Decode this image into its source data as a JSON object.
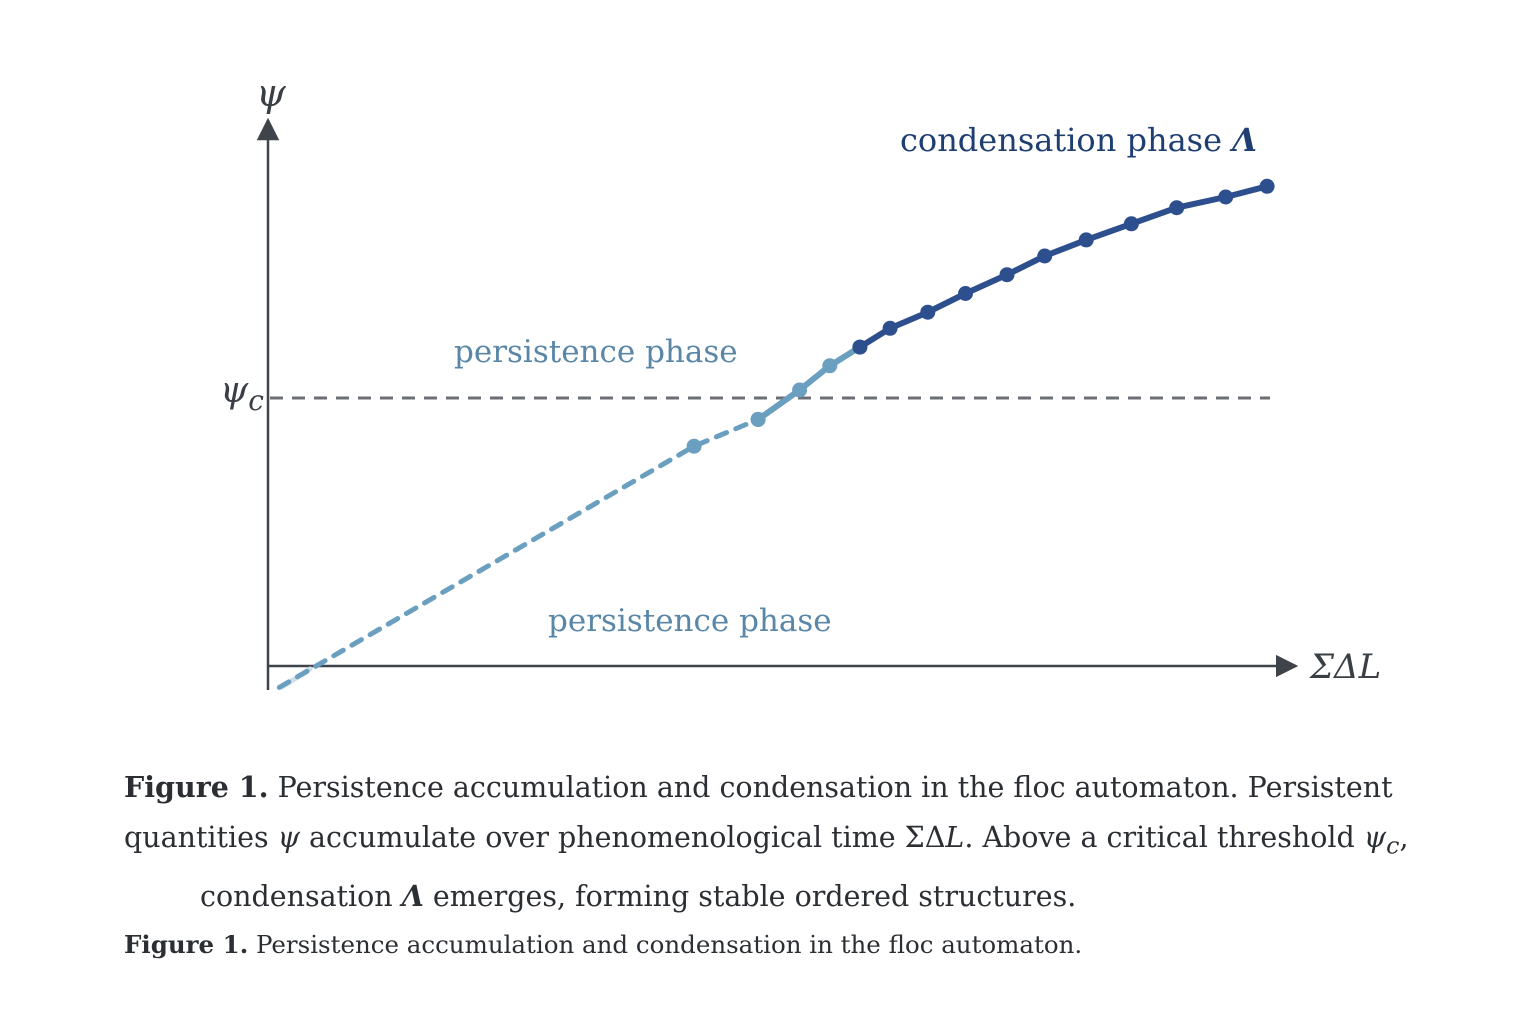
{
  "chart_data": {
    "type": "line",
    "ylabel": "ψ",
    "xlabel": "ΣΔL",
    "threshold": {
      "label": "ψ",
      "subscript": "c",
      "value": 10
    },
    "xlim": [
      0,
      27
    ],
    "ylim": [
      0,
      20
    ],
    "annotations": [
      {
        "text": "persistence phase",
        "color": "#5a87a8",
        "anchor": "above-threshold"
      },
      {
        "text": "persistence phase",
        "color": "#5a87a8",
        "anchor": "lower-middle"
      },
      {
        "text": "condensation phase",
        "symbol": "Λ",
        "color": "#1f3f72",
        "anchor": "top-right"
      }
    ],
    "series": [
      {
        "style": "dashed",
        "color": "#6a9fc0",
        "x": [
          0.3,
          11.3,
          13.0
        ],
        "y": [
          -0.8,
          8.2,
          9.2
        ],
        "markers_x": [
          11.3,
          13.0
        ],
        "markers_y": [
          8.2,
          9.2
        ]
      },
      {
        "style": "solid",
        "color": "#6a9fc0",
        "x": [
          13.0,
          14.1,
          14.9,
          15.7
        ],
        "y": [
          9.2,
          10.3,
          11.2,
          11.9
        ]
      },
      {
        "style": "solid",
        "color": "#2d4f8e",
        "x": [
          15.7,
          16.5,
          17.5,
          18.5,
          19.6,
          20.6,
          21.7,
          22.9,
          24.1,
          25.4,
          26.5
        ],
        "y": [
          11.9,
          12.6,
          13.2,
          13.9,
          14.6,
          15.3,
          15.9,
          16.5,
          17.1,
          17.5,
          17.9
        ]
      }
    ]
  },
  "caption": {
    "main_label": "Figure 1.",
    "main_line1": "Persistence accumulation and condensation in the floc automaton. Persistent",
    "main_line2_a": "quantities ",
    "psi": "ψ",
    "main_line2_b": " accumulate over phenomenological time ",
    "sigma_delta": "ΣΔ",
    "L": "L",
    "main_line2_c": ". Above a critical threshold ",
    "psi_c_sub": "c",
    "comma": ",",
    "main_line3_a": "condensation ",
    "lambda": "Λ",
    "main_line3_b": " emerges, forming stable ordered structures.",
    "short_label": "Figure 1.",
    "short_text": "Persistence accumulation and condensation in the floc automaton."
  }
}
